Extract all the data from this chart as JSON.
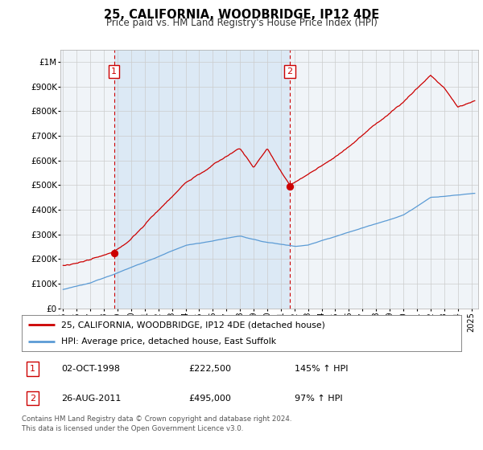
{
  "title": "25, CALIFORNIA, WOODBRIDGE, IP12 4DE",
  "subtitle": "Price paid vs. HM Land Registry's House Price Index (HPI)",
  "ylabel_ticks": [
    "£0",
    "£100K",
    "£200K",
    "£300K",
    "£400K",
    "£500K",
    "£600K",
    "£700K",
    "£800K",
    "£900K",
    "£1M"
  ],
  "ytick_values": [
    0,
    100000,
    200000,
    300000,
    400000,
    500000,
    600000,
    700000,
    800000,
    900000,
    1000000
  ],
  "ylim": [
    0,
    1050000
  ],
  "xlim_start": 1994.8,
  "xlim_end": 2025.5,
  "sale1_x": 1998.75,
  "sale1_y": 222500,
  "sale2_x": 2011.65,
  "sale2_y": 495000,
  "legend_red_label": "25, CALIFORNIA, WOODBRIDGE, IP12 4DE (detached house)",
  "legend_blue_label": "HPI: Average price, detached house, East Suffolk",
  "footer_line1": "Contains HM Land Registry data © Crown copyright and database right 2024.",
  "footer_line2": "This data is licensed under the Open Government Licence v3.0.",
  "sale1_date": "02-OCT-1998",
  "sale1_price": "£222,500",
  "sale1_hpi": "145% ↑ HPI",
  "sale2_date": "26-AUG-2011",
  "sale2_price": "£495,000",
  "sale2_hpi": "97% ↑ HPI",
  "red_color": "#cc0000",
  "blue_color": "#5b9bd5",
  "shade_color": "#dce9f5",
  "vline_color": "#cc0000",
  "grid_color": "#cccccc",
  "background_color": "#ffffff",
  "plot_bg_color": "#f0f4f8"
}
